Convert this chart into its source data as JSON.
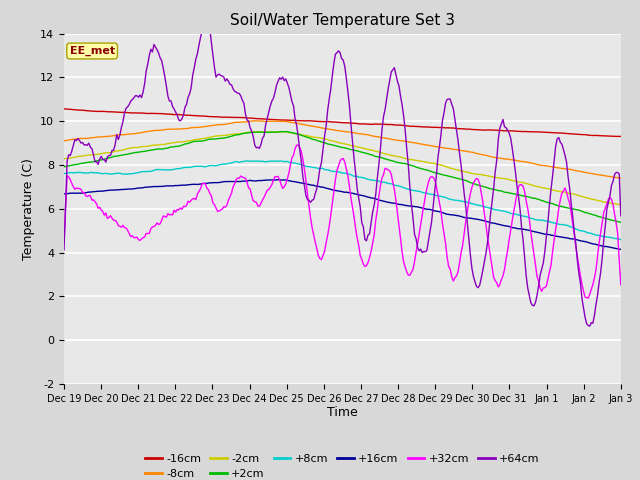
{
  "title": "Soil/Water Temperature Set 3",
  "xlabel": "Time",
  "ylabel": "Temperature (C)",
  "ylim": [
    -2,
    14
  ],
  "yticks": [
    -2,
    0,
    2,
    4,
    6,
    8,
    10,
    12,
    14
  ],
  "annotation_text": "EE_met",
  "fig_bg_color": "#d8d8d8",
  "plot_bg_color": "#e8e8e8",
  "series": [
    {
      "label": "-16cm",
      "color": "#cc0000"
    },
    {
      "label": "-8cm",
      "color": "#ff8800"
    },
    {
      "label": "-2cm",
      "color": "#cccc00"
    },
    {
      "label": "+2cm",
      "color": "#00bb00"
    },
    {
      "label": "+8cm",
      "color": "#00cccc"
    },
    {
      "label": "+16cm",
      "color": "#000099"
    },
    {
      "label": "+32cm",
      "color": "#ff00ff"
    },
    {
      "label": "+64cm",
      "color": "#8800bb"
    }
  ],
  "x_labels": [
    "Dec 19",
    "Dec 20",
    "Dec 21",
    "Dec 22",
    "Dec 23",
    "Dec 24",
    "Dec 25",
    "Dec 26",
    "Dec 27",
    "Dec 28",
    "Dec 29",
    "Dec 30",
    "Dec 31",
    "Jan 1",
    "Jan 2",
    "Jan 3"
  ],
  "n_points": 360
}
